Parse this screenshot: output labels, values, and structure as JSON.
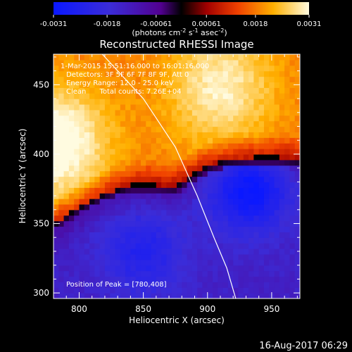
{
  "footer_timestamp": "16-Aug-2017 06:29",
  "chart_data": {
    "type": "heatmap",
    "title": "Reconstructed RHESSI Image",
    "xlabel": "Heliocentric X (arcsec)",
    "ylabel": "Heliocentric Y (arcsec)",
    "xlim": [
      780,
      972
    ],
    "ylim": [
      296,
      472
    ],
    "xticks": [
      800,
      850,
      900,
      950
    ],
    "yticks": [
      300,
      350,
      400,
      450
    ],
    "colorbar": {
      "range": [
        -0.0031,
        0.0031
      ],
      "tick_values": [
        -0.0031,
        -0.0018,
        -0.00061,
        0.00061,
        0.0018,
        0.0031
      ],
      "tick_labels": [
        "-0.0031",
        "-0.0018",
        "-0.00061",
        "0.00061",
        "0.0018",
        "0.0031"
      ],
      "unit_label": "(photons cm",
      "unit_exp1": "-2",
      "unit_mid": " s",
      "unit_exp2": "-1",
      "unit_mid2": " asec",
      "unit_exp3": "-2",
      "unit_end": ")"
    },
    "annotations": [
      " 1-Mar-2015 15:51:16.000 to 16:01:16.000",
      "Detectors: 3F 5F 6F 7F 8F 9F, Att 0",
      "Energy Range: 12.0 - 25.0 keV",
      "Clean      Total counts: 7.26E+04"
    ],
    "peak_label": "Position of Peak = [780,408]",
    "peak": [
      780,
      408
    ],
    "limb_curve": [
      [
        818,
        472
      ],
      [
        850,
        440
      ],
      [
        875,
        405
      ],
      [
        892,
        370
      ],
      [
        905,
        340
      ],
      [
        915,
        318
      ],
      [
        922,
        296
      ]
    ],
    "boundary_curve": [
      [
        780,
        350
      ],
      [
        800,
        362
      ],
      [
        820,
        372
      ],
      [
        840,
        378
      ],
      [
        860,
        378
      ],
      [
        875,
        377
      ],
      [
        888,
        385
      ],
      [
        900,
        392
      ],
      [
        915,
        396
      ],
      [
        935,
        398
      ],
      [
        955,
        398
      ],
      [
        972,
        396
      ]
    ],
    "bright_peaks": [
      [
        781,
        408,
        0.0031
      ],
      [
        910,
        448,
        0.0027
      ]
    ],
    "dark_peaks": [
      [
        932,
        377,
        -0.003
      ],
      [
        850,
        330,
        -0.0022
      ]
    ]
  }
}
